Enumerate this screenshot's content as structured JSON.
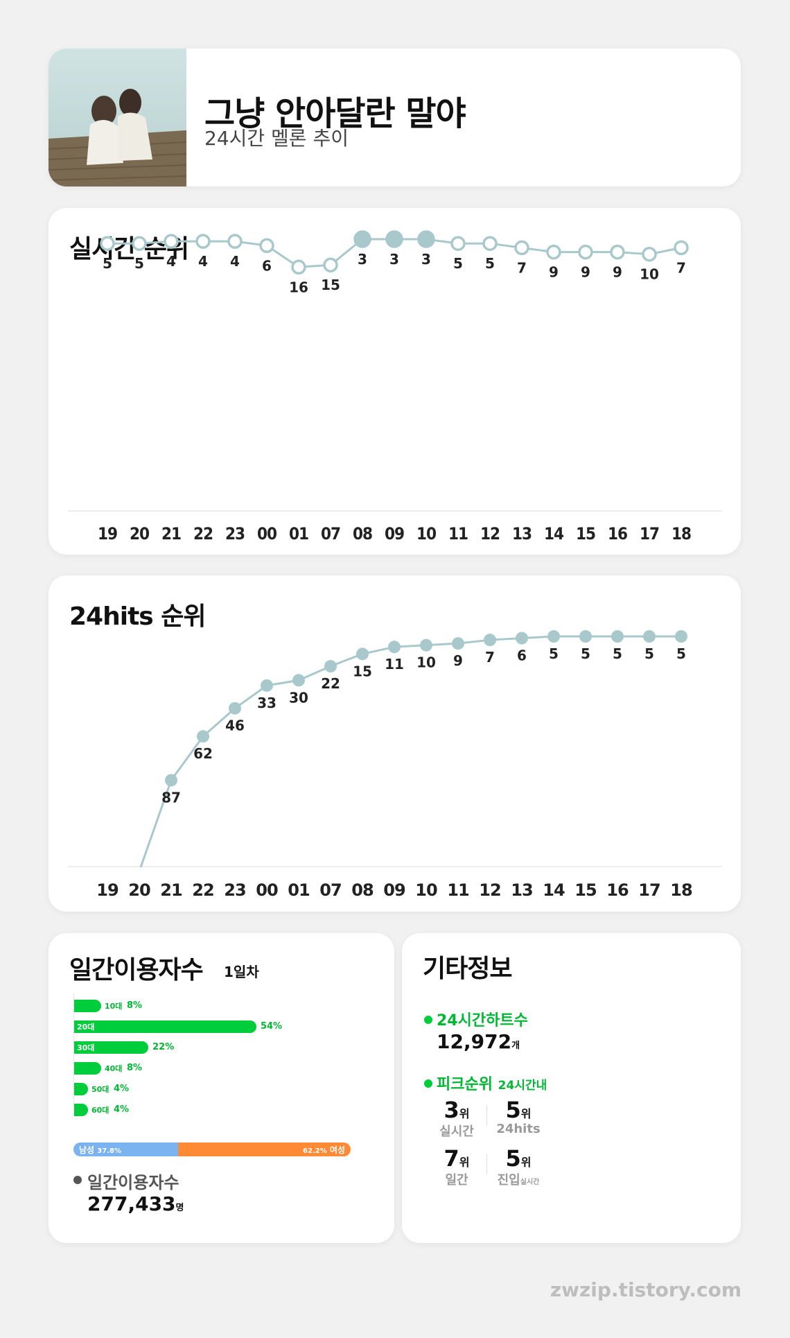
{
  "header": {
    "title": "그냥 안아달란 말야",
    "subtitle": "24시간 멜론 추이"
  },
  "realtime": {
    "title": "실시간 순위"
  },
  "hits": {
    "title": "24hits 순위"
  },
  "chart_data": [
    {
      "type": "line",
      "title": "실시간 순위",
      "categories": [
        "19",
        "20",
        "21",
        "22",
        "23",
        "00",
        "01",
        "07",
        "08",
        "09",
        "10",
        "11",
        "12",
        "13",
        "14",
        "15",
        "16",
        "17",
        "18"
      ],
      "values": [
        5,
        5,
        4,
        4,
        4,
        6,
        16,
        15,
        3,
        3,
        3,
        5,
        5,
        7,
        9,
        9,
        9,
        10,
        7
      ],
      "highlight_indices": [
        8,
        9,
        10
      ],
      "colors": {
        "line": "#a8c8cc",
        "marker": "#a8c8cc",
        "marker_fill": "#ffffff"
      }
    },
    {
      "type": "line",
      "title": "24hits 순위",
      "categories": [
        "19",
        "20",
        "21",
        "22",
        "23",
        "00",
        "01",
        "07",
        "08",
        "09",
        "10",
        "11",
        "12",
        "13",
        "14",
        "15",
        "16",
        "17",
        "18"
      ],
      "values": [
        null,
        null,
        87,
        62,
        46,
        33,
        30,
        22,
        15,
        11,
        10,
        9,
        7,
        6,
        5,
        5,
        5,
        5,
        5
      ],
      "note_first_segment": "line enters from below axis between 20 and 21",
      "colors": {
        "line": "#a8c8cc",
        "marker": "#a8c8cc"
      }
    },
    {
      "type": "bar",
      "title": "일간이용자수",
      "categories": [
        "10대",
        "20대",
        "30대",
        "40대",
        "50대",
        "60대"
      ],
      "values": [
        8,
        54,
        22,
        8,
        4,
        4
      ],
      "value_labels": [
        "8%",
        "54%",
        "22%",
        "8%",
        "4%",
        "4%"
      ],
      "colors": {
        "bar": "#00cd3c"
      }
    }
  ],
  "users": {
    "title": "일간이용자수",
    "subtitle": "1일차",
    "male_label": "남성",
    "male_pct": "37.8%",
    "male_value": 37.8,
    "female_label": "여성",
    "female_pct": "62.2%",
    "total_label": "일간이용자수",
    "total_value": "277,433",
    "total_unit": "명"
  },
  "etc": {
    "title": "기타정보",
    "hearts_label": "24시간하트수",
    "hearts_value": "12,972",
    "hearts_unit": "개",
    "peak_label": "피크순위",
    "peak_sub": "24시간내",
    "peaks": [
      {
        "num": "3",
        "unit": "위",
        "name": "실시간",
        "name_suffix": ""
      },
      {
        "num": "5",
        "unit": "위",
        "name": "24hits",
        "name_suffix": ""
      },
      {
        "num": "7",
        "unit": "위",
        "name": "일간",
        "name_suffix": ""
      },
      {
        "num": "5",
        "unit": "위",
        "name": "진입",
        "name_suffix": "실시간"
      }
    ]
  },
  "footer": {
    "credit": "zwzip.tistory.com"
  }
}
